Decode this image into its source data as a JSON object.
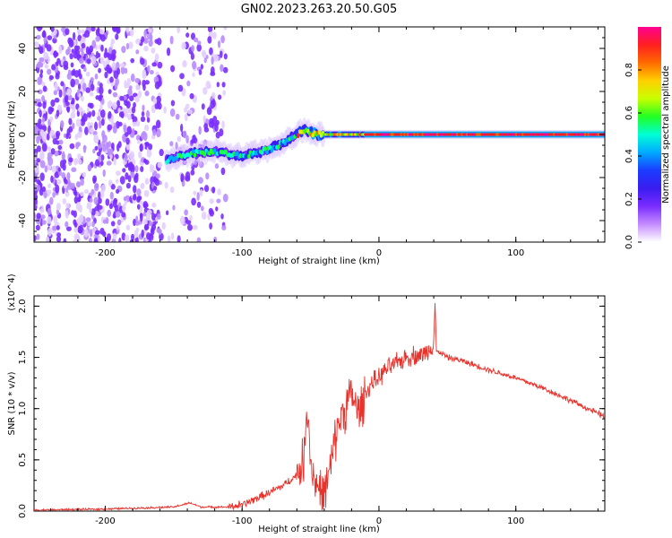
{
  "title": "GN02.2023.263.20.50.G05",
  "chart_data": [
    {
      "type": "heatmap",
      "xlabel": "Height of straight line (km)",
      "ylabel": "Frequency (Hz)",
      "xlim": [
        -252,
        165
      ],
      "ylim": [
        -50,
        50
      ],
      "xticks": [
        -200,
        -100,
        0,
        100
      ],
      "yticks": [
        -40,
        -20,
        0,
        20,
        40
      ],
      "colorbar": {
        "label": "Normalized spectral amplitude",
        "range": [
          0,
          1
        ],
        "ticks": [
          0.0,
          0.2,
          0.4,
          0.6,
          0.8
        ],
        "colors": [
          "#ffffff",
          "#c58cff",
          "#7a2cff",
          "#3a1cf0",
          "#1b3cff",
          "#00aaff",
          "#00ffd4",
          "#22ff22",
          "#c8ff00",
          "#ffd000",
          "#ff6a00",
          "#ff1f1f",
          "#ff0090"
        ]
      },
      "ridge": {
        "x": [
          -155,
          -140,
          -120,
          -100,
          -80,
          -65,
          -55,
          -45,
          -30,
          -20,
          -10,
          0,
          50,
          100,
          165
        ],
        "y": [
          -12,
          -9,
          -8,
          -10,
          -7,
          -2,
          2,
          0,
          0,
          0,
          0,
          0,
          0,
          0,
          0
        ]
      },
      "noise_region_x": [
        -252,
        -112
      ]
    },
    {
      "type": "line",
      "xlabel": "Height of straight line (km)",
      "ylabel": "SNR (10 * v/v)",
      "y_multiplier": "(x10^4)",
      "xlim": [
        -252,
        165
      ],
      "ylim": [
        0,
        2.1
      ],
      "xticks": [
        -200,
        -100,
        0,
        100
      ],
      "yticks": [
        0.0,
        0.5,
        1.0,
        1.5,
        2.0
      ],
      "series": [
        {
          "color": "#e8322c",
          "x": [
            -252,
            -200,
            -150,
            -138,
            -130,
            -110,
            -100,
            -90,
            -80,
            -70,
            -60,
            -55,
            -52,
            -50,
            -48,
            -45,
            -40,
            -35,
            -30,
            -25,
            -20,
            -15,
            -10,
            -5,
            0,
            5,
            10,
            15,
            20,
            25,
            30,
            35,
            40,
            41,
            42,
            45,
            50,
            60,
            80,
            100,
            120,
            140,
            165
          ],
          "y": [
            0.01,
            0.02,
            0.04,
            0.08,
            0.04,
            0.04,
            0.06,
            0.12,
            0.18,
            0.25,
            0.35,
            0.5,
            1.05,
            0.5,
            0.35,
            0.25,
            0.15,
            0.45,
            0.85,
            1.0,
            1.15,
            0.95,
            1.15,
            1.25,
            1.3,
            1.38,
            1.42,
            1.46,
            1.5,
            1.52,
            1.52,
            1.55,
            1.65,
            2.05,
            1.55,
            1.55,
            1.5,
            1.47,
            1.38,
            1.3,
            1.2,
            1.08,
            0.92
          ]
        }
      ]
    }
  ]
}
